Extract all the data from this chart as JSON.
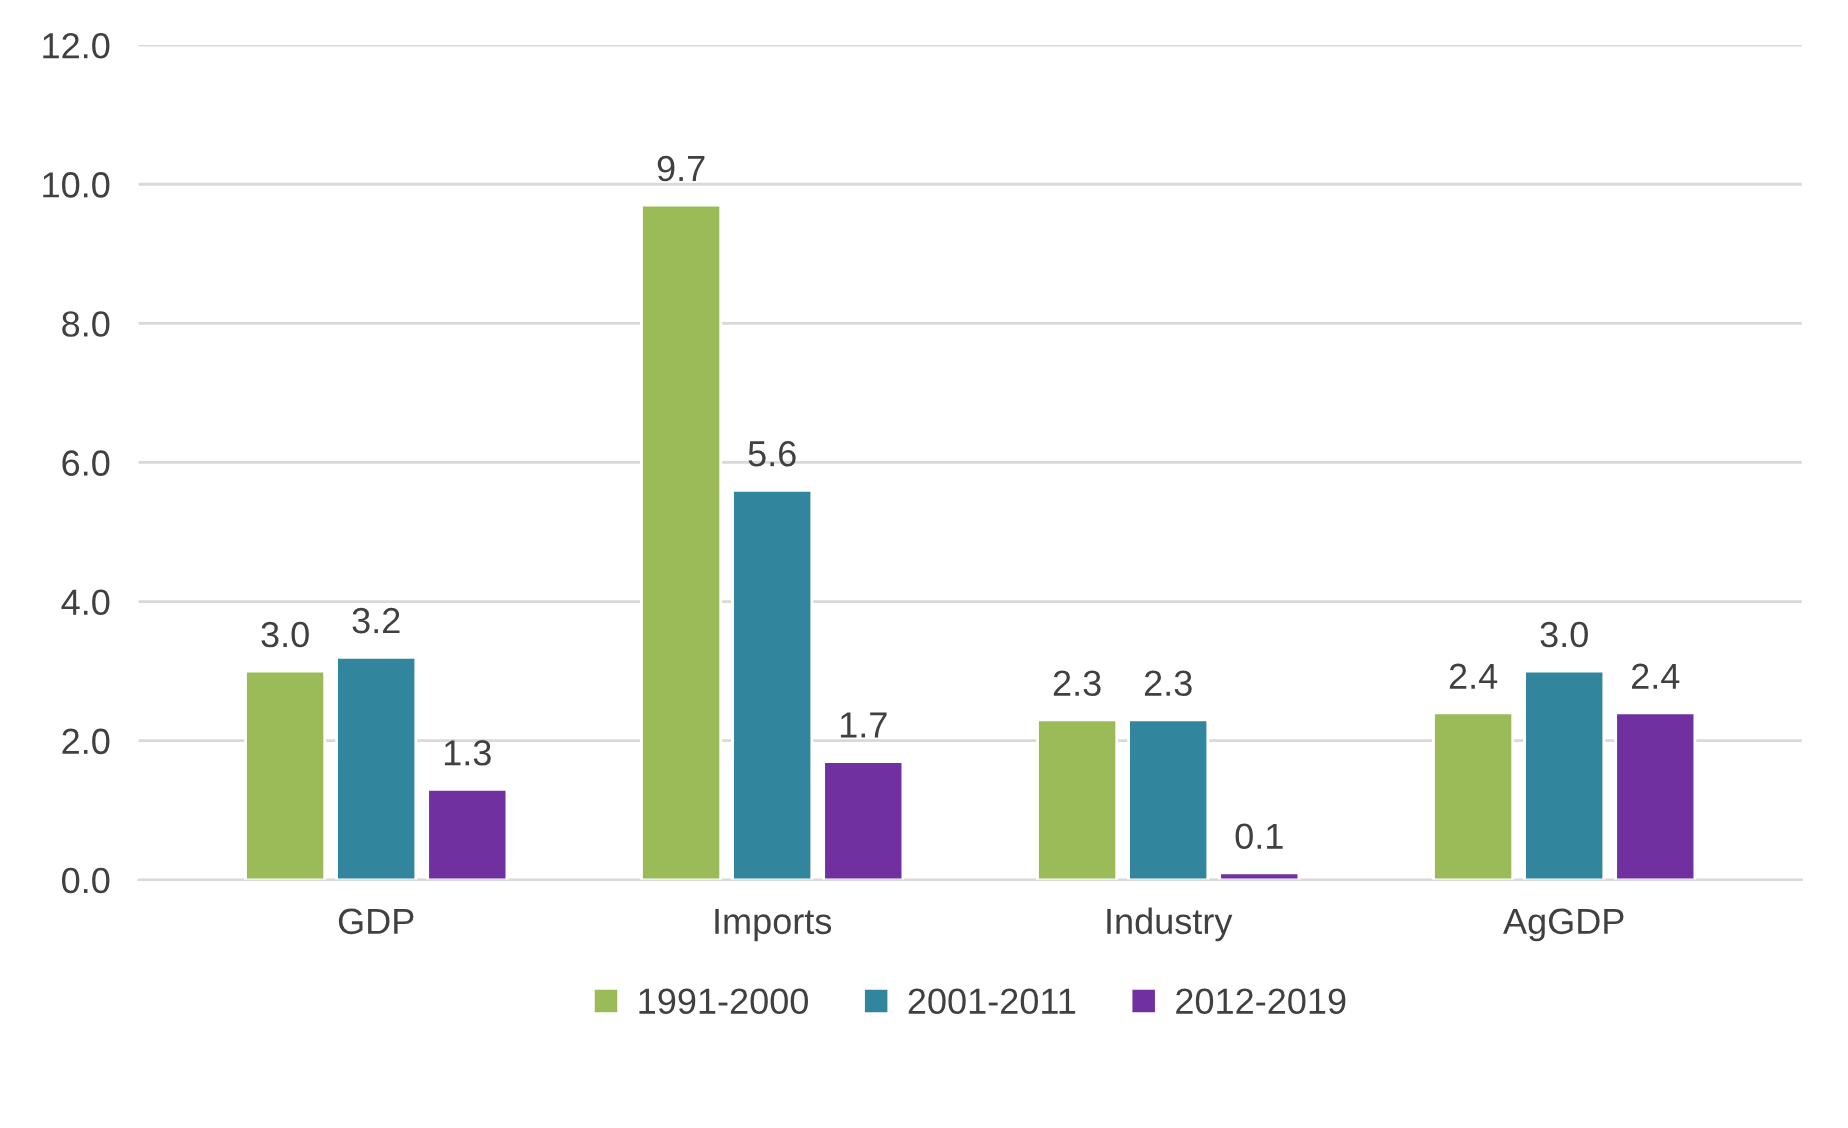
{
  "chart_data": {
    "type": "bar",
    "categories": [
      "GDP",
      "Imports",
      "Industry",
      "AgGDP"
    ],
    "series": [
      {
        "name": "1991-2000",
        "color": "#9bbb59",
        "values": [
          3.0,
          9.7,
          2.3,
          2.4
        ],
        "value_labels": [
          "3.0",
          "9.7",
          "2.3",
          "2.4"
        ]
      },
      {
        "name": "2001-2011",
        "color": "#31859c",
        "values": [
          3.2,
          5.6,
          2.3,
          3.0
        ],
        "value_labels": [
          "3.2",
          "5.6",
          "2.3",
          "3.0"
        ]
      },
      {
        "name": "2012-2019",
        "color": "#7030a0",
        "values": [
          1.3,
          1.7,
          0.1,
          2.4
        ],
        "value_labels": [
          "1.3",
          "1.7",
          "0.1",
          "2.4"
        ]
      }
    ],
    "ylim": [
      0,
      12
    ],
    "yticks": [
      {
        "value": 0,
        "label": "0.0"
      },
      {
        "value": 2,
        "label": "2.0"
      },
      {
        "value": 4,
        "label": "4.0"
      },
      {
        "value": 6,
        "label": "6.0"
      },
      {
        "value": 8,
        "label": "8.0"
      },
      {
        "value": 10,
        "label": "10.0"
      },
      {
        "value": 12,
        "label": "12.0"
      }
    ],
    "grid": "y",
    "legend": "bottom"
  }
}
